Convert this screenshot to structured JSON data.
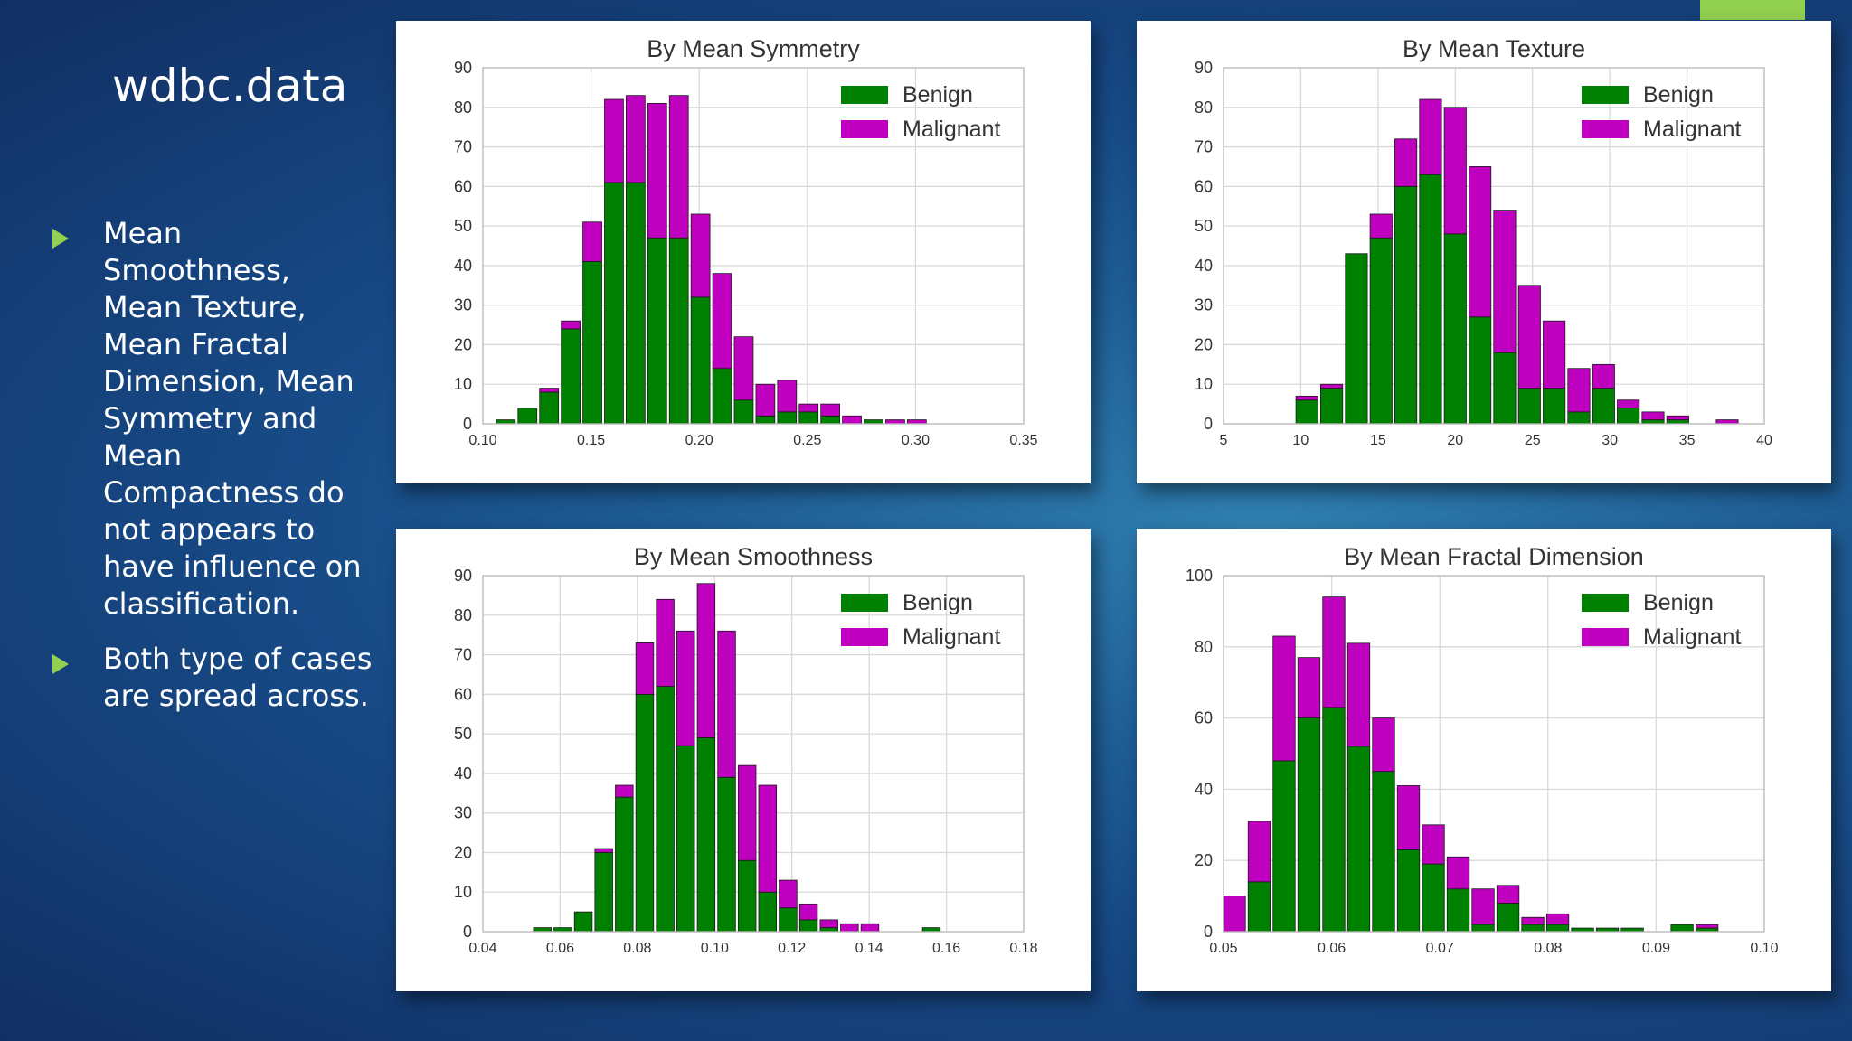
{
  "slide": {
    "title": "wdbc.data",
    "bullets": [
      "Mean Smoothness, Mean Texture, Mean Fractal Dimension, Mean Symmetry and Mean Compactness do not appears to have influence on classification.",
      "Both type of cases are spread across."
    ]
  },
  "colors": {
    "benign": "#008000",
    "malignant": "#bf00bf",
    "accent": "#92d050"
  },
  "chart_data": [
    {
      "type": "bar",
      "stacked": true,
      "title": "By Mean Symmetry",
      "xlim": [
        0.1,
        0.35
      ],
      "ylim": [
        0,
        90
      ],
      "xticks": [
        "0.10",
        "0.15",
        "0.20",
        "0.25",
        "0.30",
        "0.35"
      ],
      "yticks": [
        "0",
        "10",
        "20",
        "30",
        "40",
        "50",
        "60",
        "70",
        "80",
        "90"
      ],
      "grid": true,
      "legend_position": "top-right",
      "x": [
        0.1106,
        0.1206,
        0.1306,
        0.1406,
        0.1506,
        0.1606,
        0.1706,
        0.1806,
        0.1906,
        0.2006,
        0.2106,
        0.2206,
        0.2306,
        0.2406,
        0.2506,
        0.2606,
        0.2706,
        0.2806,
        0.2906,
        0.3006
      ],
      "series": [
        {
          "name": "Benign",
          "values": [
            1,
            4,
            8,
            24,
            41,
            61,
            61,
            47,
            47,
            32,
            14,
            6,
            2,
            3,
            3,
            2,
            0,
            1,
            0,
            0
          ]
        },
        {
          "name": "Malignant",
          "values": [
            0,
            0,
            1,
            2,
            10,
            21,
            22,
            34,
            36,
            21,
            24,
            16,
            8,
            8,
            2,
            3,
            2,
            0,
            1,
            1
          ]
        }
      ]
    },
    {
      "type": "bar",
      "stacked": true,
      "title": "By Mean Texture",
      "xlim": [
        5,
        40
      ],
      "ylim": [
        0,
        90
      ],
      "xticks": [
        "5",
        "10",
        "15",
        "20",
        "25",
        "30",
        "35",
        "40"
      ],
      "yticks": [
        "0",
        "10",
        "20",
        "30",
        "40",
        "50",
        "60",
        "70",
        "80",
        "90"
      ],
      "grid": true,
      "legend_position": "top-right",
      "x": [
        10.4,
        12.0,
        13.6,
        15.2,
        16.8,
        18.4,
        20.0,
        21.6,
        23.2,
        24.8,
        26.4,
        28.0,
        29.6,
        31.2,
        32.8,
        34.4,
        36.0,
        37.6
      ],
      "series": [
        {
          "name": "Benign",
          "values": [
            6,
            9,
            43,
            47,
            60,
            63,
            48,
            27,
            18,
            9,
            9,
            3,
            9,
            4,
            1,
            1,
            0,
            0
          ]
        },
        {
          "name": "Malignant",
          "values": [
            1,
            1,
            0,
            6,
            12,
            19,
            32,
            38,
            36,
            26,
            17,
            11,
            6,
            2,
            2,
            1,
            0,
            1
          ]
        }
      ]
    },
    {
      "type": "bar",
      "stacked": true,
      "title": "By Mean Smoothness",
      "xlim": [
        0.04,
        0.18
      ],
      "ylim": [
        0,
        90
      ],
      "xticks": [
        "0.04",
        "0.06",
        "0.08",
        "0.10",
        "0.12",
        "0.14",
        "0.16",
        "0.18"
      ],
      "yticks": [
        "0",
        "10",
        "20",
        "30",
        "40",
        "50",
        "60",
        "70",
        "80",
        "90"
      ],
      "grid": true,
      "legend_position": "top-right",
      "x": [
        0.0554,
        0.0607,
        0.066,
        0.0713,
        0.0766,
        0.0819,
        0.0872,
        0.0925,
        0.0978,
        0.1031,
        0.1084,
        0.1137,
        0.119,
        0.1243,
        0.1296,
        0.1349,
        0.1402,
        0.1455,
        0.1508,
        0.1561
      ],
      "series": [
        {
          "name": "Benign",
          "values": [
            1,
            1,
            5,
            20,
            34,
            60,
            62,
            47,
            49,
            39,
            18,
            10,
            6,
            3,
            1,
            0,
            0,
            0,
            0,
            1
          ]
        },
        {
          "name": "Malignant",
          "values": [
            0,
            0,
            0,
            1,
            3,
            13,
            22,
            29,
            39,
            37,
            24,
            27,
            7,
            4,
            2,
            2,
            2,
            0,
            0,
            0
          ]
        }
      ]
    },
    {
      "type": "bar",
      "stacked": true,
      "title": "By Mean Fractal Dimension",
      "xlim": [
        0.05,
        0.1
      ],
      "ylim": [
        0,
        100
      ],
      "xticks": [
        "0.05",
        "0.06",
        "0.07",
        "0.08",
        "0.09",
        "0.10"
      ],
      "yticks": [
        "0",
        "20",
        "40",
        "60",
        "80",
        "100"
      ],
      "grid": true,
      "legend_position": "top-right",
      "x": [
        0.051,
        0.0533,
        0.0556,
        0.0579,
        0.0602,
        0.0625,
        0.0648,
        0.0671,
        0.0694,
        0.0717,
        0.074,
        0.0763,
        0.0786,
        0.0809,
        0.0832,
        0.0855,
        0.0878,
        0.0901,
        0.0924,
        0.0947
      ],
      "series": [
        {
          "name": "Benign",
          "values": [
            0,
            14,
            48,
            60,
            63,
            52,
            45,
            23,
            19,
            12,
            2,
            8,
            2,
            2,
            1,
            1,
            1,
            0,
            2,
            1
          ]
        },
        {
          "name": "Malignant",
          "values": [
            10,
            17,
            35,
            17,
            31,
            29,
            15,
            18,
            11,
            9,
            10,
            5,
            2,
            3,
            0,
            0,
            0,
            0,
            0,
            1
          ]
        }
      ]
    }
  ]
}
